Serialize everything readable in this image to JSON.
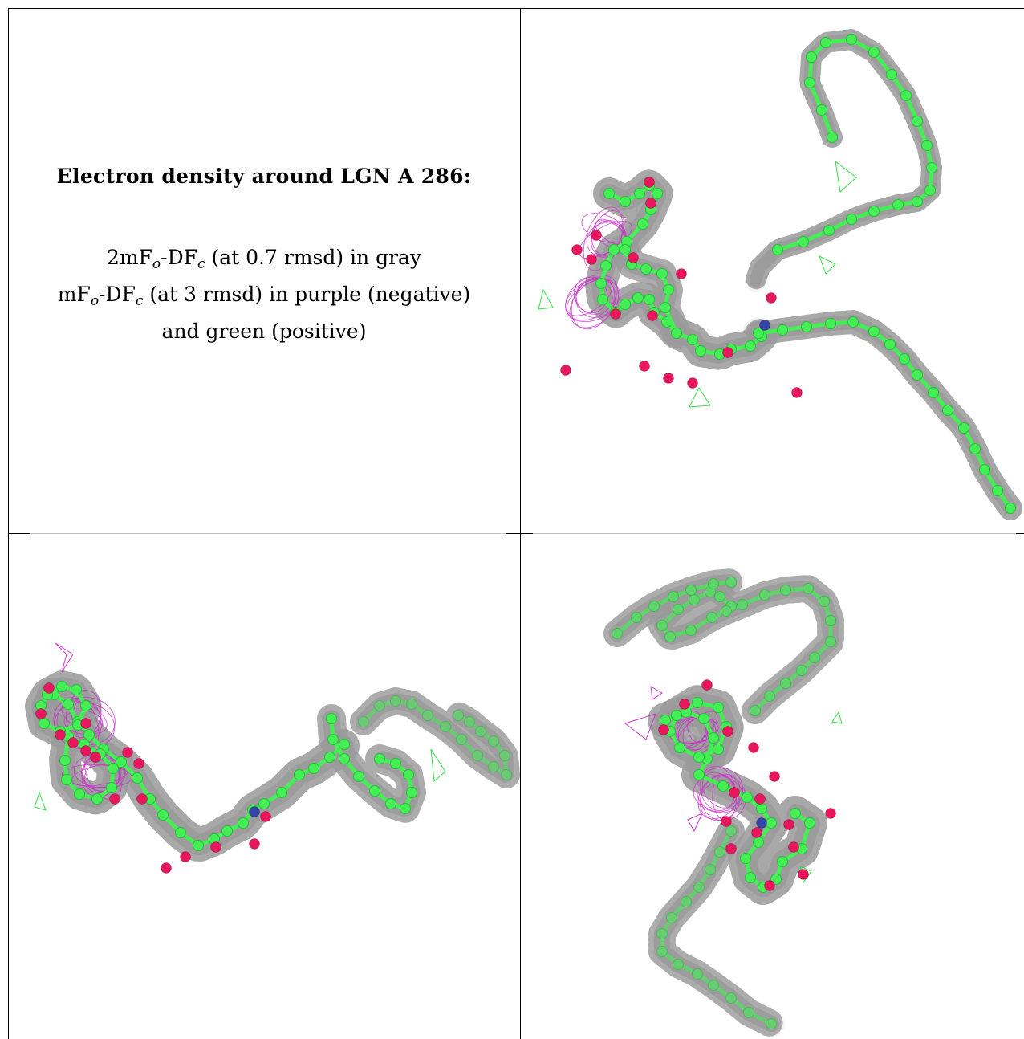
{
  "caption": {
    "title": "Electron density around LGN A 286:",
    "line1": {
      "pre": "2mF",
      "sub1": "o",
      "mid": "-DF",
      "sub2": "c",
      "post": " (at 0.7 rmsd) in gray"
    },
    "line2": {
      "pre": "mF",
      "sub1": "o",
      "mid": "-DF",
      "sub2": "c",
      "post": " (at 3 rmsd) in purple (negative)"
    },
    "line3": "and green (positive)"
  },
  "colors": {
    "mesh_gray": "#9a9a9a",
    "carbon_green": "#44ee55",
    "oxygen_red": "#e8175d",
    "nitrogen_blue": "#3344aa",
    "negative_density_purple": "#cc33cc",
    "positive_density_green": "#33dd44",
    "grid_line": "#000000"
  },
  "panels": [
    {
      "name": "view-1",
      "icon": "molecule-density-view-1"
    },
    {
      "name": "view-2",
      "icon": "molecule-density-view-2"
    },
    {
      "name": "view-3",
      "icon": "molecule-density-view-3"
    }
  ]
}
